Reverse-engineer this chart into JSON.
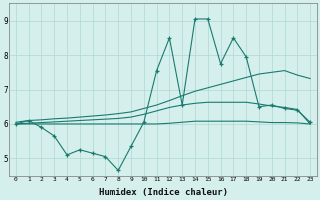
{
  "x": [
    0,
    1,
    2,
    3,
    4,
    5,
    6,
    7,
    8,
    9,
    10,
    11,
    12,
    13,
    14,
    15,
    16,
    17,
    18,
    19,
    20,
    21,
    22,
    23
  ],
  "y_main": [
    6.0,
    6.1,
    5.9,
    5.65,
    5.1,
    5.25,
    5.15,
    5.05,
    4.65,
    5.35,
    6.05,
    7.55,
    8.5,
    6.55,
    9.05,
    9.05,
    7.75,
    8.5,
    7.95,
    6.5,
    6.55,
    6.45,
    6.4,
    6.05
  ],
  "y_upper": [
    6.05,
    6.1,
    6.12,
    6.15,
    6.17,
    6.2,
    6.23,
    6.26,
    6.3,
    6.35,
    6.45,
    6.55,
    6.68,
    6.82,
    6.95,
    7.05,
    7.15,
    7.25,
    7.35,
    7.45,
    7.5,
    7.55,
    7.42,
    7.32
  ],
  "y_mid": [
    6.0,
    6.02,
    6.04,
    6.06,
    6.08,
    6.1,
    6.12,
    6.14,
    6.16,
    6.2,
    6.28,
    6.38,
    6.48,
    6.55,
    6.6,
    6.63,
    6.63,
    6.63,
    6.63,
    6.58,
    6.52,
    6.48,
    6.42,
    6.0
  ],
  "y_lower": [
    6.0,
    6.0,
    6.0,
    6.0,
    6.0,
    6.0,
    6.0,
    6.0,
    6.0,
    6.0,
    6.0,
    6.0,
    6.02,
    6.05,
    6.08,
    6.08,
    6.08,
    6.08,
    6.08,
    6.06,
    6.04,
    6.04,
    6.03,
    6.0
  ],
  "line_color": "#1a7a6e",
  "bg_color": "#d5efed",
  "grid_color": "#aed8d4",
  "xlabel": "Humidex (Indice chaleur)",
  "ylim": [
    4.5,
    9.5
  ],
  "xlim": [
    -0.5,
    23.5
  ],
  "yticks": [
    5,
    6,
    7,
    8,
    9
  ],
  "xticks": [
    0,
    1,
    2,
    3,
    4,
    5,
    6,
    7,
    8,
    9,
    10,
    11,
    12,
    13,
    14,
    15,
    16,
    17,
    18,
    19,
    20,
    21,
    22,
    23
  ]
}
